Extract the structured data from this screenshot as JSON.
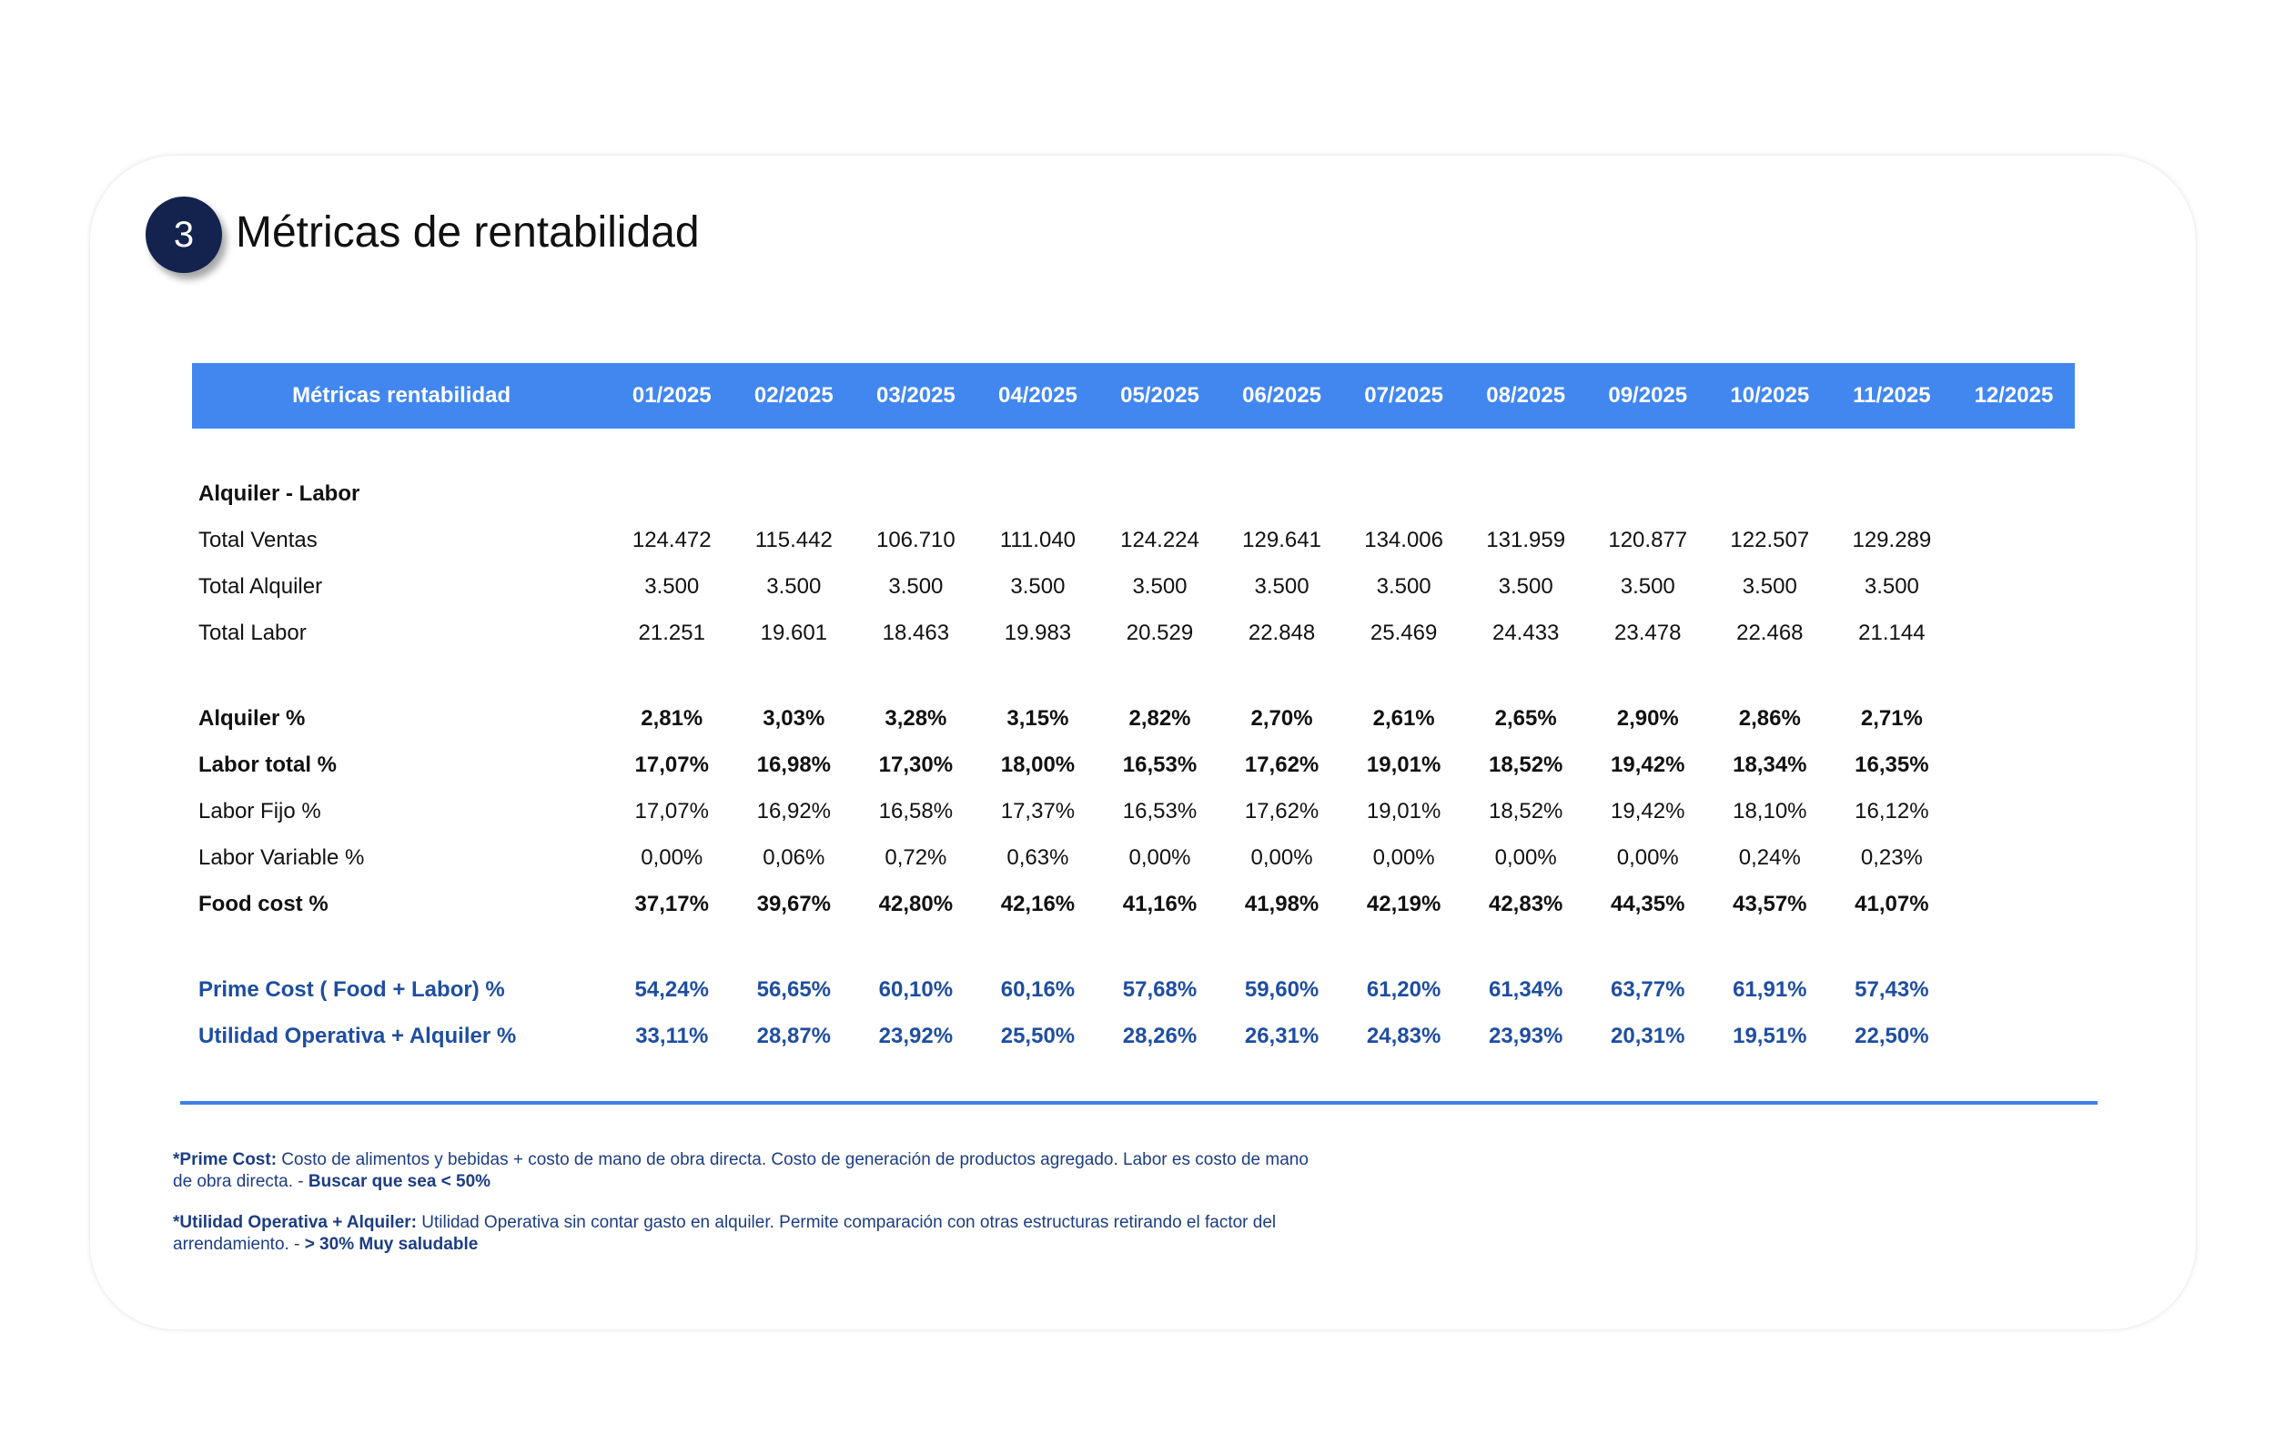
{
  "section": {
    "number": "3",
    "title": "Métricas de rentabilidad"
  },
  "table": {
    "header_label": "Métricas rentabilidad",
    "months": [
      "01/2025",
      "02/2025",
      "03/2025",
      "04/2025",
      "05/2025",
      "06/2025",
      "07/2025",
      "08/2025",
      "09/2025",
      "10/2025",
      "11/2025",
      "12/2025"
    ],
    "group_label": "Alquiler - Labor",
    "rows": {
      "total_ventas": {
        "label": "Total Ventas",
        "values": [
          "124.472",
          "115.442",
          "106.710",
          "111.040",
          "124.224",
          "129.641",
          "134.006",
          "131.959",
          "120.877",
          "122.507",
          "129.289",
          ""
        ]
      },
      "total_alquiler": {
        "label": "Total Alquiler",
        "values": [
          "3.500",
          "3.500",
          "3.500",
          "3.500",
          "3.500",
          "3.500",
          "3.500",
          "3.500",
          "3.500",
          "3.500",
          "3.500",
          ""
        ]
      },
      "total_labor": {
        "label": "Total Labor",
        "values": [
          "21.251",
          "19.601",
          "18.463",
          "19.983",
          "20.529",
          "22.848",
          "25.469",
          "24.433",
          "23.478",
          "22.468",
          "21.144",
          ""
        ]
      },
      "alquiler_pct": {
        "label": "Alquiler %",
        "values": [
          "2,81%",
          "3,03%",
          "3,28%",
          "3,15%",
          "2,82%",
          "2,70%",
          "2,61%",
          "2,65%",
          "2,90%",
          "2,86%",
          "2,71%",
          ""
        ]
      },
      "labor_total_pct": {
        "label": "Labor total %",
        "values": [
          "17,07%",
          "16,98%",
          "17,30%",
          "18,00%",
          "16,53%",
          "17,62%",
          "19,01%",
          "18,52%",
          "19,42%",
          "18,34%",
          "16,35%",
          ""
        ]
      },
      "labor_fijo_pct": {
        "label": "Labor Fijo %",
        "values": [
          "17,07%",
          "16,92%",
          "16,58%",
          "17,37%",
          "16,53%",
          "17,62%",
          "19,01%",
          "18,52%",
          "19,42%",
          "18,10%",
          "16,12%",
          ""
        ]
      },
      "labor_variable_pct": {
        "label": "Labor Variable %",
        "values": [
          "0,00%",
          "0,06%",
          "0,72%",
          "0,63%",
          "0,00%",
          "0,00%",
          "0,00%",
          "0,00%",
          "0,00%",
          "0,24%",
          "0,23%",
          ""
        ]
      },
      "food_cost_pct": {
        "label": "Food cost %",
        "values": [
          "37,17%",
          "39,67%",
          "42,80%",
          "42,16%",
          "41,16%",
          "41,98%",
          "42,19%",
          "42,83%",
          "44,35%",
          "43,57%",
          "41,07%",
          ""
        ]
      },
      "prime_cost_pct": {
        "label": "Prime Cost ( Food + Labor) %",
        "values": [
          "54,24%",
          "56,65%",
          "60,10%",
          "60,16%",
          "57,68%",
          "59,60%",
          "61,20%",
          "61,34%",
          "63,77%",
          "61,91%",
          "57,43%",
          ""
        ]
      },
      "utilidad_pct": {
        "label": "Utilidad Operativa + Alquiler %",
        "values": [
          "33,11%",
          "28,87%",
          "23,92%",
          "25,50%",
          "28,26%",
          "26,31%",
          "24,83%",
          "23,93%",
          "20,31%",
          "19,51%",
          "22,50%",
          ""
        ]
      }
    }
  },
  "notes": {
    "prime_cost": {
      "title": "*Prime Cost:",
      "text": " Costo de alimentos y bebidas + costo de mano de obra directa. Costo de generación de productos agregado. Labor es costo de mano de obra directa. - ",
      "emphasis": "Buscar que sea < 50%"
    },
    "utilidad": {
      "title": "*Utilidad Operativa + Alquiler:",
      "text": " Utilidad Operativa sin contar gasto en alquiler. Permite comparación con otras estructuras retirando el factor del arrendamiento. - ",
      "emphasis": "> 30% Muy saludable"
    }
  },
  "colors": {
    "header_bg": "#4287f0",
    "badge_bg": "#14234e",
    "accent_text": "#1f4ea0",
    "rule": "#3f7fe6",
    "notes_text": "#1c3d82"
  }
}
